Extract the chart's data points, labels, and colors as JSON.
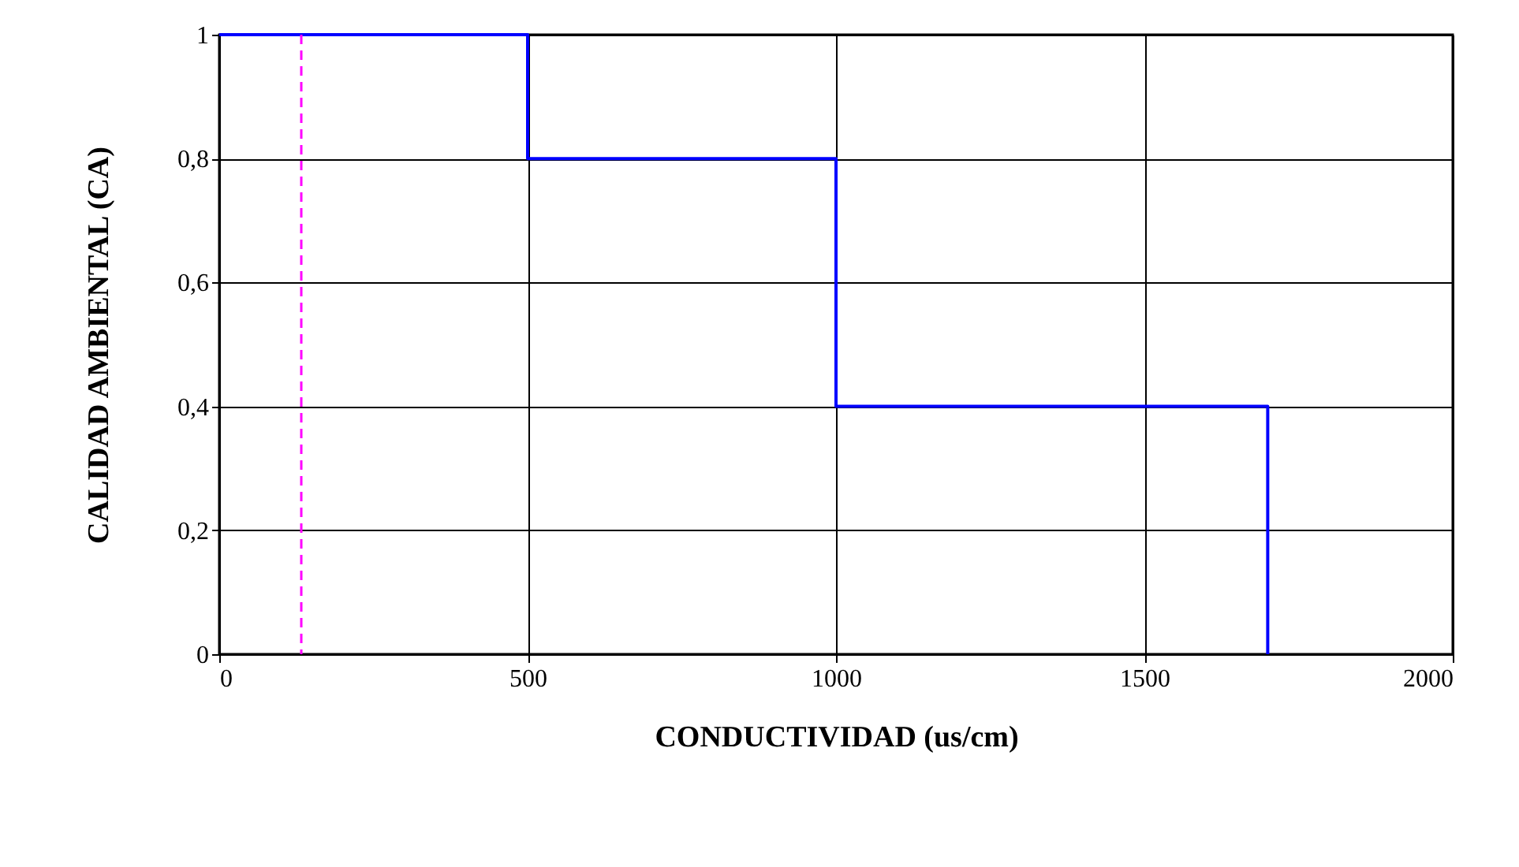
{
  "chart_data": {
    "type": "step",
    "xlabel": "CONDUCTIVIDAD (us/cm)",
    "ylabel": "CALIDAD AMBIENTAL (CA)",
    "x": [
      0,
      500,
      1000,
      1700
    ],
    "series": [
      {
        "color": "#0000ff",
        "values": [
          1,
          0.8,
          0.4,
          0
        ]
      }
    ],
    "xlim": [
      0,
      2000
    ],
    "xticks": [
      0,
      500,
      1000,
      1500,
      2000
    ],
    "ylim": [
      0,
      1
    ],
    "yticks": [
      0,
      {
        "value": 0.2,
        "label": "0,2"
      },
      {
        "value": 0.4,
        "label": "0,4"
      },
      {
        "value": 0.6,
        "label": "0,6"
      },
      {
        "value": 0.8,
        "label": "0,8"
      },
      1
    ],
    "ref_lines": [
      {
        "axis": "x",
        "value": 133,
        "color": "#ff00ff",
        "line_style": "dashed"
      }
    ],
    "grid": true
  }
}
